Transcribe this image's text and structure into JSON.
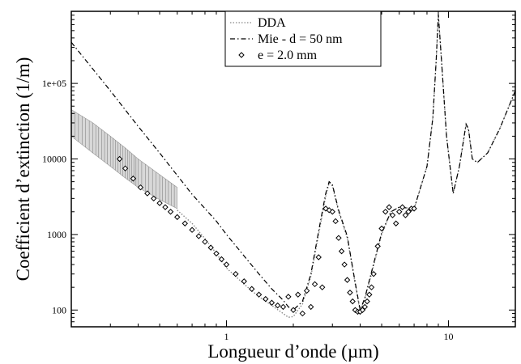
{
  "chart_data": {
    "type": "line",
    "xscale": "log",
    "yscale": "log",
    "xlim": [
      0.2,
      20
    ],
    "ylim": [
      60,
      900000
    ],
    "xlabel": "Longueur d’onde (µm)",
    "ylabel": "Coefficient d’extinction (1/m)",
    "x_ticks": [
      {
        "value": 1,
        "label": "1"
      },
      {
        "value": 10,
        "label": "10"
      }
    ],
    "y_ticks": [
      {
        "value": 100,
        "label": "100"
      },
      {
        "value": 1000,
        "label": "1000"
      },
      {
        "value": 10000,
        "label": "10000"
      },
      {
        "value": 100000,
        "label": "1e+05"
      }
    ],
    "grid": false,
    "legend_position": "top-center",
    "series": [
      {
        "name": "DDA",
        "style": "dotted",
        "color": "#888888",
        "band": {
          "x": [
            0.2,
            0.25,
            0.3,
            0.35,
            0.4,
            0.5,
            0.6
          ],
          "upper": [
            45000,
            30000,
            20000,
            14000,
            10000,
            6200,
            4200
          ],
          "lower": [
            20000,
            12000,
            8000,
            5600,
            4200,
            2900,
            2200
          ]
        },
        "x": [
          0.6,
          0.7,
          0.8,
          0.9,
          1.0,
          1.2,
          1.4,
          1.6,
          1.8,
          1.9,
          2.0,
          2.2,
          2.4,
          2.6,
          2.8,
          2.9,
          3.0,
          3.2,
          3.5,
          3.8,
          4.0,
          4.2,
          4.5,
          5.0,
          5.5,
          6.0,
          7.0,
          8.0,
          8.5,
          8.8,
          9.0,
          9.3,
          9.8,
          10.5,
          11.2,
          12.0,
          12.3,
          12.8,
          13.5,
          15.0,
          17.0,
          20.0
        ],
        "y": [
          2100,
          1400,
          880,
          560,
          360,
          220,
          150,
          115,
          90,
          80,
          82,
          120,
          280,
          1000,
          3200,
          4800,
          4400,
          2000,
          900,
          220,
          95,
          140,
          300,
          1000,
          2000,
          2300,
          2200,
          8000,
          35000,
          200000,
          800000,
          200000,
          20000,
          3500,
          8000,
          28000,
          24000,
          10000,
          9000,
          12000,
          25000,
          80000
        ]
      },
      {
        "name": "Mie - d = 50 nm",
        "style": "dash-dot",
        "color": "#000000",
        "x": [
          0.2,
          0.3,
          0.4,
          0.5,
          0.7,
          0.9,
          1.0,
          1.2,
          1.4,
          1.6,
          1.8,
          1.9,
          2.0,
          2.2,
          2.4,
          2.6,
          2.8,
          2.9,
          3.0,
          3.2,
          3.5,
          3.8,
          4.0,
          4.2,
          4.5,
          5.0,
          5.5,
          6.0,
          7.0,
          8.0,
          8.5,
          8.8,
          9.0,
          9.3,
          9.8,
          10.5,
          11.2,
          12.0,
          12.3,
          12.8,
          13.5,
          15.0,
          17.0,
          20.0
        ],
        "y": [
          350000,
          80000,
          27000,
          12000,
          3400,
          1500,
          1000,
          520,
          300,
          190,
          135,
          110,
          100,
          130,
          300,
          1100,
          3500,
          5000,
          4600,
          2100,
          950,
          230,
          100,
          145,
          320,
          1050,
          2000,
          2300,
          2200,
          8000,
          35000,
          200000,
          820000,
          200000,
          20000,
          3500,
          8000,
          29000,
          25000,
          10000,
          9000,
          12000,
          25000,
          80000
        ]
      },
      {
        "name": "e = 2.0 mm",
        "style": "diamond-markers",
        "color": "#000000",
        "x": [
          0.33,
          0.35,
          0.38,
          0.41,
          0.44,
          0.47,
          0.5,
          0.53,
          0.56,
          0.6,
          0.65,
          0.7,
          0.75,
          0.8,
          0.85,
          0.9,
          0.95,
          1.0,
          1.1,
          1.2,
          1.3,
          1.4,
          1.5,
          1.6,
          1.7,
          1.8,
          1.9,
          2.0,
          2.1,
          2.2,
          2.3,
          2.4,
          2.5,
          2.6,
          2.7,
          2.8,
          2.9,
          3.0,
          3.1,
          3.2,
          3.3,
          3.4,
          3.5,
          3.6,
          3.7,
          3.8,
          3.9,
          4.0,
          4.1,
          4.2,
          4.3,
          4.4,
          4.5,
          4.6,
          4.8,
          5.0,
          5.2,
          5.4,
          5.6,
          5.8,
          6.0,
          6.2,
          6.4,
          6.6,
          6.8,
          7.0
        ],
        "y": [
          10000,
          7500,
          5500,
          4200,
          3500,
          3000,
          2600,
          2300,
          2000,
          1700,
          1400,
          1150,
          950,
          800,
          670,
          560,
          470,
          400,
          300,
          240,
          190,
          160,
          140,
          125,
          115,
          110,
          150,
          100,
          160,
          90,
          180,
          110,
          220,
          500,
          200,
          2200,
          2100,
          2000,
          1500,
          900,
          600,
          400,
          250,
          170,
          130,
          100,
          95,
          95,
          100,
          110,
          130,
          160,
          200,
          300,
          700,
          1200,
          2000,
          2300,
          1800,
          1400,
          2000,
          2300,
          1800,
          2000,
          2200,
          2200
        ]
      }
    ]
  }
}
